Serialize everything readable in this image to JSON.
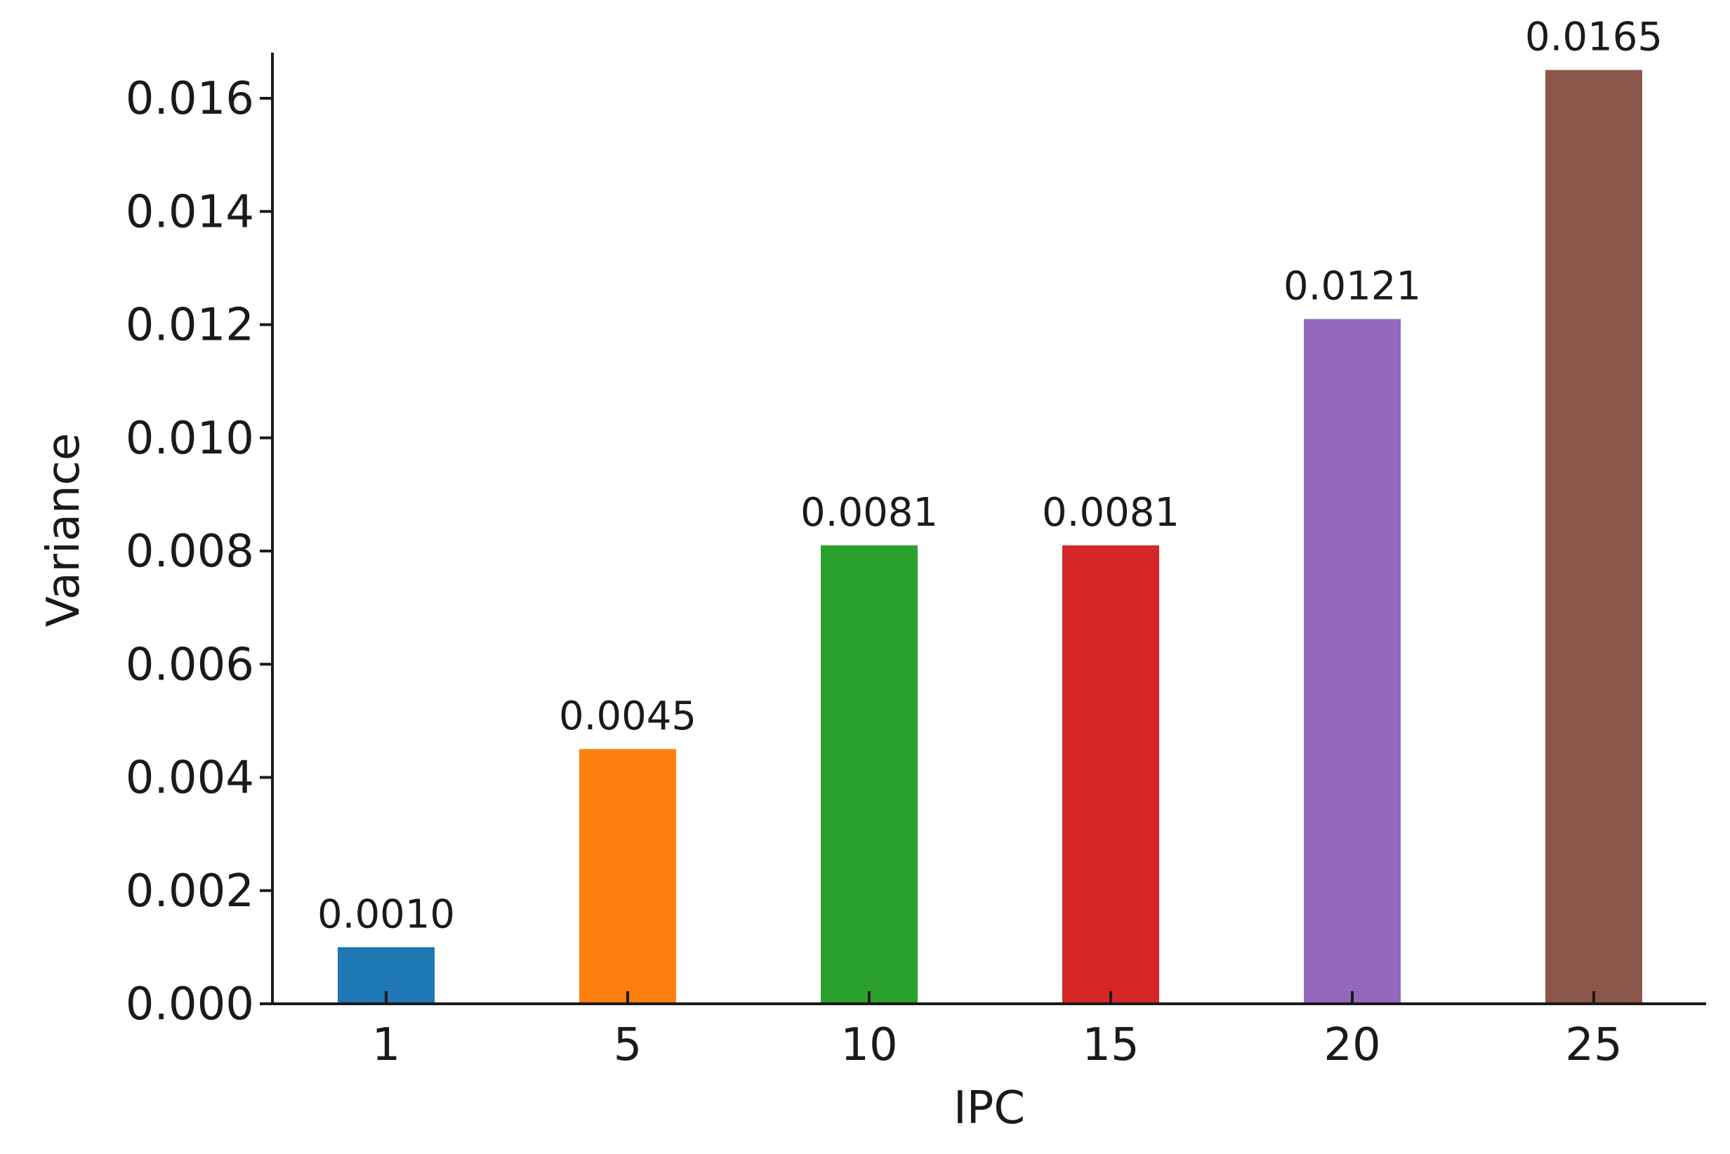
{
  "chart_data": {
    "type": "bar",
    "title": "",
    "xlabel": "IPC",
    "ylabel": "Variance",
    "categories": [
      "1",
      "5",
      "10",
      "15",
      "20",
      "25"
    ],
    "values": [
      0.001,
      0.0045,
      0.0081,
      0.0081,
      0.0121,
      0.0165
    ],
    "data_labels": [
      "0.0010",
      "0.0045",
      "0.0081",
      "0.0081",
      "0.0121",
      "0.0165"
    ],
    "colors": [
      "#1f77b4",
      "#ff7f0e",
      "#2ca02c",
      "#d62728",
      "#9467bd",
      "#8c564b"
    ],
    "ylim": [
      0,
      0.0174
    ],
    "yticks": [
      0.0,
      0.002,
      0.004,
      0.006,
      0.008,
      0.01,
      0.012,
      0.014,
      0.016
    ],
    "ytick_labels": [
      "0.000",
      "0.002",
      "0.004",
      "0.006",
      "0.008",
      "0.010",
      "0.012",
      "0.014",
      "0.016"
    ],
    "grid": false,
    "legend": "none"
  }
}
